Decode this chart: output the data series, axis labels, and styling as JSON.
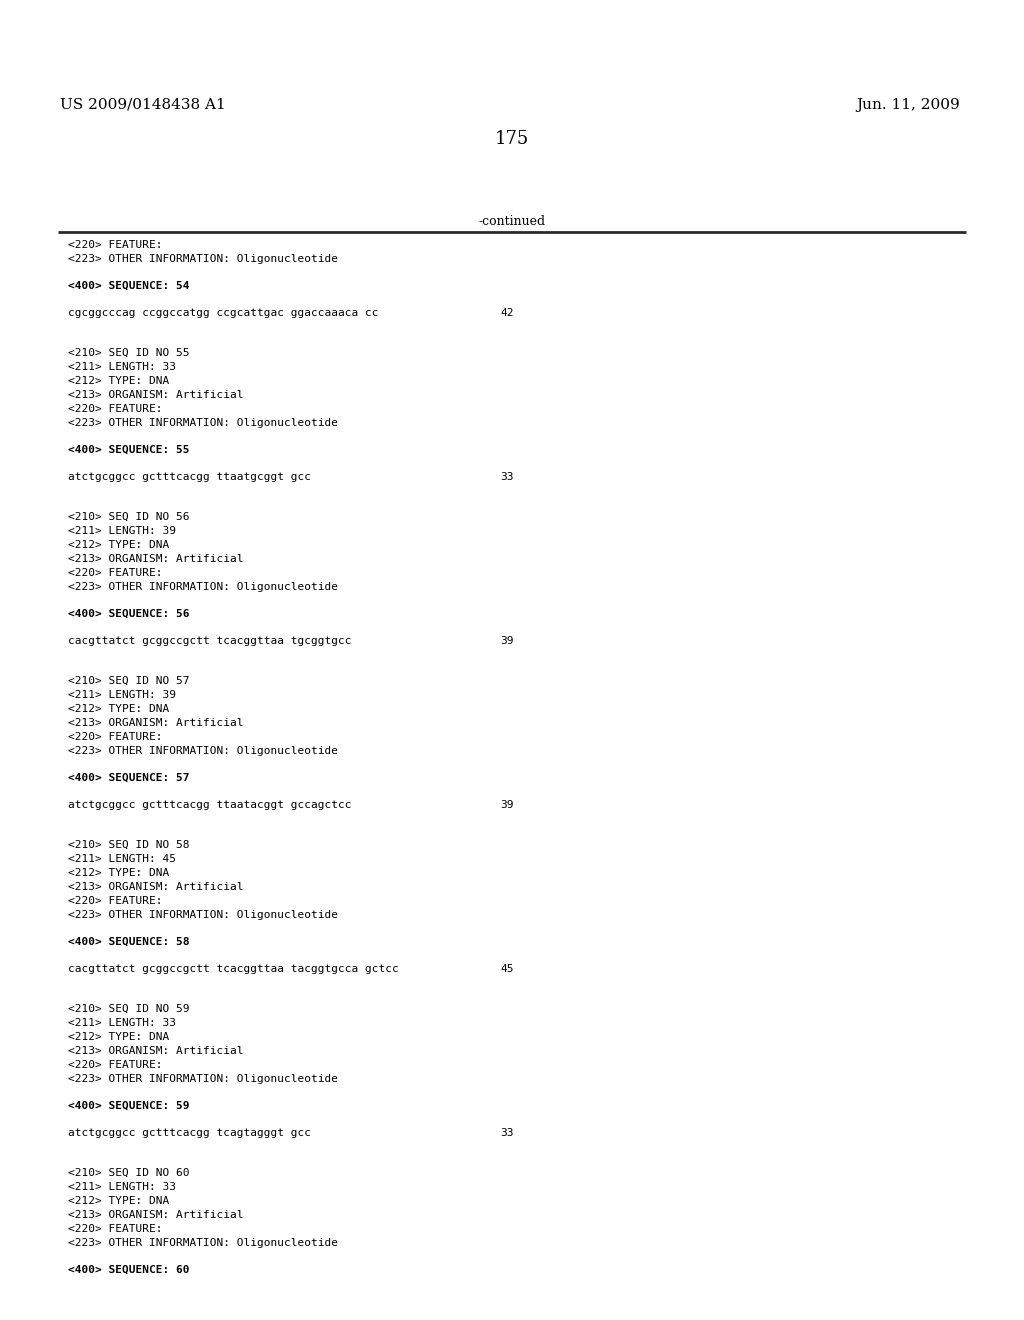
{
  "header_left": "US 2009/0148438 A1",
  "header_right": "Jun. 11, 2009",
  "page_number": "175",
  "continued_text": "-continued",
  "background_color": "#ffffff",
  "text_color": "#000000",
  "content": [
    {
      "type": "meta",
      "text": "<220> FEATURE:"
    },
    {
      "type": "meta",
      "text": "<223> OTHER INFORMATION: Oligonucleotide"
    },
    {
      "type": "blank"
    },
    {
      "type": "seq_label",
      "text": "<400> SEQUENCE: 54"
    },
    {
      "type": "blank"
    },
    {
      "type": "sequence",
      "text": "cgcggcccag ccggccatgg ccgcattgac ggaccaaaca cc",
      "num": "42"
    },
    {
      "type": "blank"
    },
    {
      "type": "blank"
    },
    {
      "type": "meta",
      "text": "<210> SEQ ID NO 55"
    },
    {
      "type": "meta",
      "text": "<211> LENGTH: 33"
    },
    {
      "type": "meta",
      "text": "<212> TYPE: DNA"
    },
    {
      "type": "meta",
      "text": "<213> ORGANISM: Artificial"
    },
    {
      "type": "meta",
      "text": "<220> FEATURE:"
    },
    {
      "type": "meta",
      "text": "<223> OTHER INFORMATION: Oligonucleotide"
    },
    {
      "type": "blank"
    },
    {
      "type": "seq_label",
      "text": "<400> SEQUENCE: 55"
    },
    {
      "type": "blank"
    },
    {
      "type": "sequence",
      "text": "atctgcggcc gctttcacgg ttaatgcggt gcc",
      "num": "33"
    },
    {
      "type": "blank"
    },
    {
      "type": "blank"
    },
    {
      "type": "meta",
      "text": "<210> SEQ ID NO 56"
    },
    {
      "type": "meta",
      "text": "<211> LENGTH: 39"
    },
    {
      "type": "meta",
      "text": "<212> TYPE: DNA"
    },
    {
      "type": "meta",
      "text": "<213> ORGANISM: Artificial"
    },
    {
      "type": "meta",
      "text": "<220> FEATURE:"
    },
    {
      "type": "meta",
      "text": "<223> OTHER INFORMATION: Oligonucleotide"
    },
    {
      "type": "blank"
    },
    {
      "type": "seq_label",
      "text": "<400> SEQUENCE: 56"
    },
    {
      "type": "blank"
    },
    {
      "type": "sequence",
      "text": "cacgttatct gcggccgctt tcacggttaa tgcggtgcc",
      "num": "39"
    },
    {
      "type": "blank"
    },
    {
      "type": "blank"
    },
    {
      "type": "meta",
      "text": "<210> SEQ ID NO 57"
    },
    {
      "type": "meta",
      "text": "<211> LENGTH: 39"
    },
    {
      "type": "meta",
      "text": "<212> TYPE: DNA"
    },
    {
      "type": "meta",
      "text": "<213> ORGANISM: Artificial"
    },
    {
      "type": "meta",
      "text": "<220> FEATURE:"
    },
    {
      "type": "meta",
      "text": "<223> OTHER INFORMATION: Oligonucleotide"
    },
    {
      "type": "blank"
    },
    {
      "type": "seq_label",
      "text": "<400> SEQUENCE: 57"
    },
    {
      "type": "blank"
    },
    {
      "type": "sequence",
      "text": "atctgcggcc gctttcacgg ttaatacggt gccagctcc",
      "num": "39"
    },
    {
      "type": "blank"
    },
    {
      "type": "blank"
    },
    {
      "type": "meta",
      "text": "<210> SEQ ID NO 58"
    },
    {
      "type": "meta",
      "text": "<211> LENGTH: 45"
    },
    {
      "type": "meta",
      "text": "<212> TYPE: DNA"
    },
    {
      "type": "meta",
      "text": "<213> ORGANISM: Artificial"
    },
    {
      "type": "meta",
      "text": "<220> FEATURE:"
    },
    {
      "type": "meta",
      "text": "<223> OTHER INFORMATION: Oligonucleotide"
    },
    {
      "type": "blank"
    },
    {
      "type": "seq_label",
      "text": "<400> SEQUENCE: 58"
    },
    {
      "type": "blank"
    },
    {
      "type": "sequence",
      "text": "cacgttatct gcggccgctt tcacggttaa tacggtgcca gctcc",
      "num": "45"
    },
    {
      "type": "blank"
    },
    {
      "type": "blank"
    },
    {
      "type": "meta",
      "text": "<210> SEQ ID NO 59"
    },
    {
      "type": "meta",
      "text": "<211> LENGTH: 33"
    },
    {
      "type": "meta",
      "text": "<212> TYPE: DNA"
    },
    {
      "type": "meta",
      "text": "<213> ORGANISM: Artificial"
    },
    {
      "type": "meta",
      "text": "<220> FEATURE:"
    },
    {
      "type": "meta",
      "text": "<223> OTHER INFORMATION: Oligonucleotide"
    },
    {
      "type": "blank"
    },
    {
      "type": "seq_label",
      "text": "<400> SEQUENCE: 59"
    },
    {
      "type": "blank"
    },
    {
      "type": "sequence",
      "text": "atctgcggcc gctttcacgg tcagtagggt gcc",
      "num": "33"
    },
    {
      "type": "blank"
    },
    {
      "type": "blank"
    },
    {
      "type": "meta",
      "text": "<210> SEQ ID NO 60"
    },
    {
      "type": "meta",
      "text": "<211> LENGTH: 33"
    },
    {
      "type": "meta",
      "text": "<212> TYPE: DNA"
    },
    {
      "type": "meta",
      "text": "<213> ORGANISM: Artificial"
    },
    {
      "type": "meta",
      "text": "<220> FEATURE:"
    },
    {
      "type": "meta",
      "text": "<223> OTHER INFORMATION: Oligonucleotide"
    },
    {
      "type": "blank"
    },
    {
      "type": "seq_label",
      "text": "<400> SEQUENCE: 60"
    }
  ]
}
